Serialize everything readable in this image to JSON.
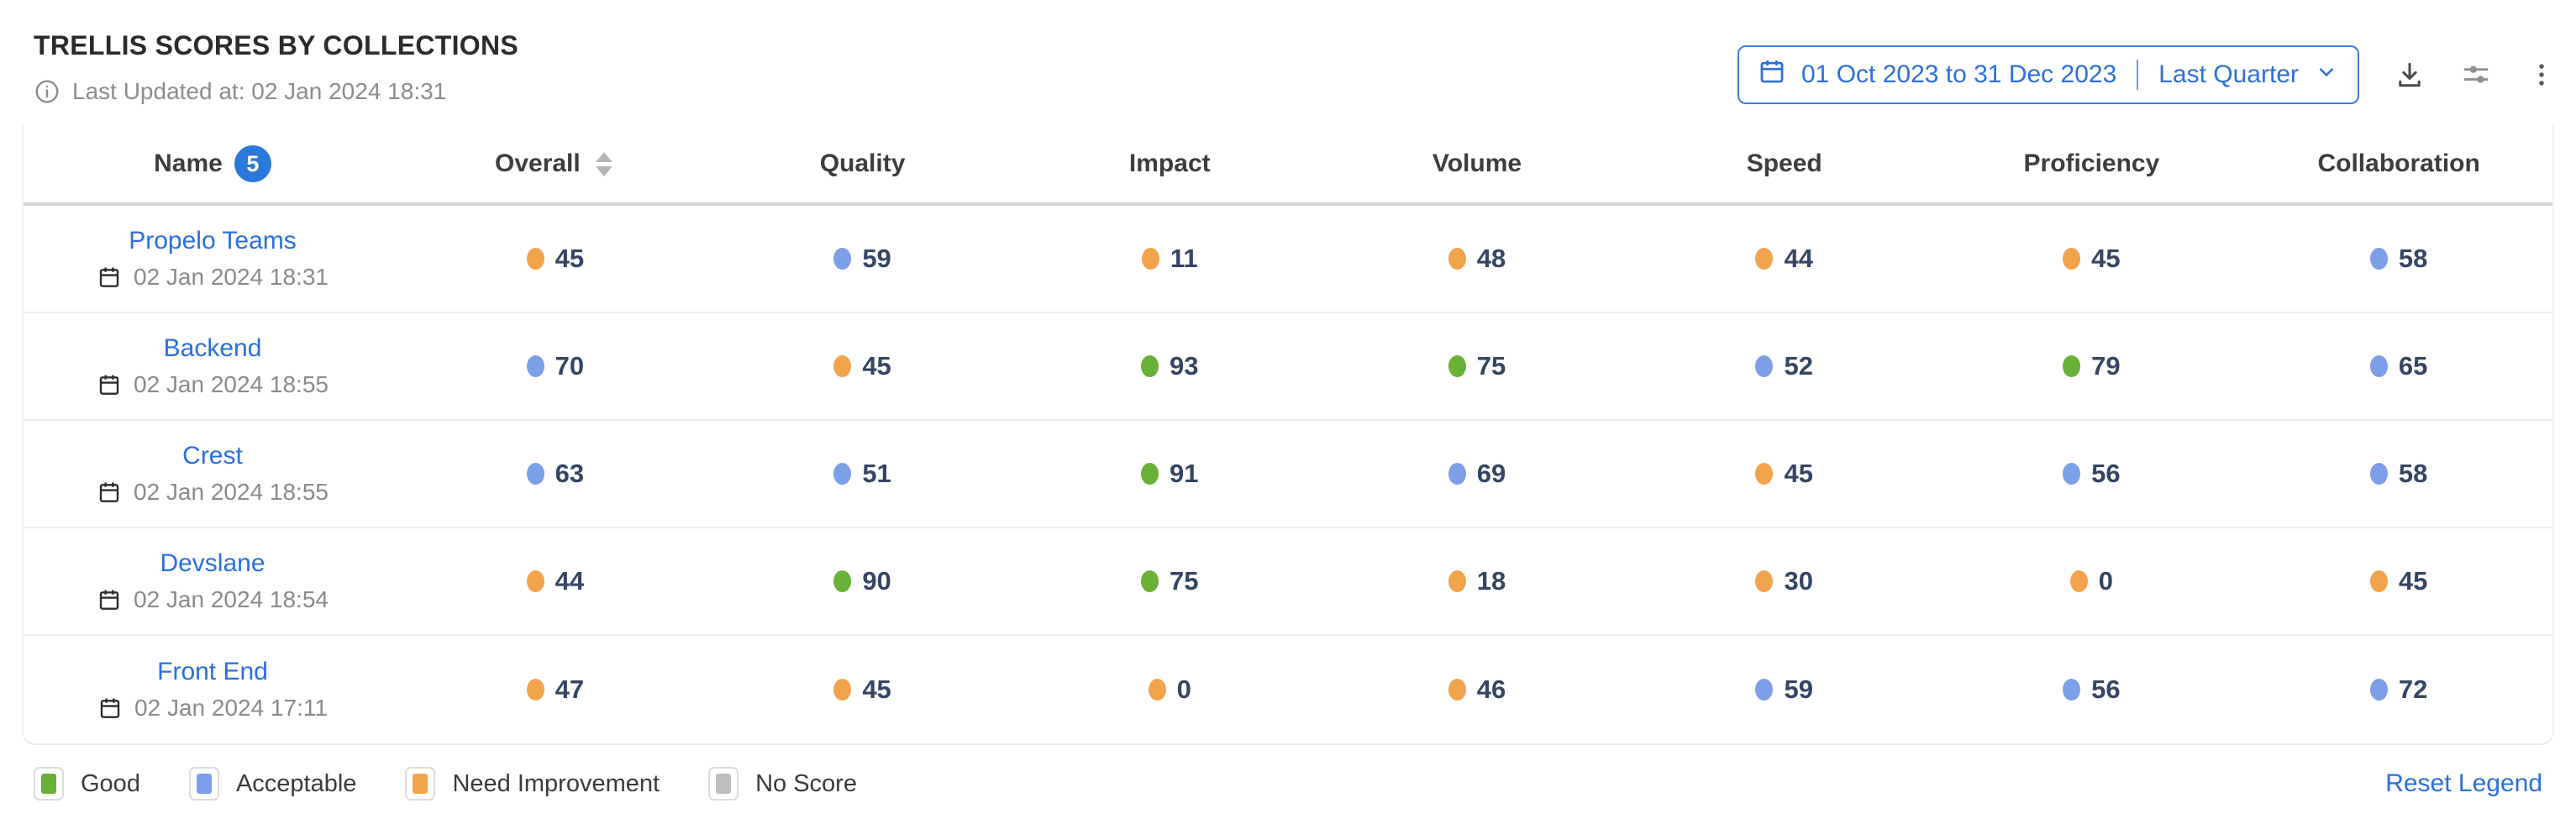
{
  "header": {
    "title": "TRELLIS SCORES BY COLLECTIONS",
    "last_updated": "Last Updated at: 02 Jan 2024 18:31",
    "date_range": {
      "range_text": "01 Oct 2023 to 31 Dec 2023",
      "preset": "Last Quarter"
    },
    "action_icons": [
      "download-icon",
      "settings-sliders-icon",
      "kebab-menu-icon"
    ]
  },
  "table": {
    "columns": [
      {
        "label": "Name",
        "badge": "5"
      },
      {
        "label": "Overall",
        "sortable": true
      },
      {
        "label": "Quality"
      },
      {
        "label": "Impact"
      },
      {
        "label": "Volume"
      },
      {
        "label": "Speed"
      },
      {
        "label": "Proficiency"
      },
      {
        "label": "Collaboration"
      }
    ],
    "rows": [
      {
        "name": "Propelo Teams",
        "updated": "02 Jan 2024 18:31",
        "scores": [
          {
            "value": 45,
            "status": "need_improvement"
          },
          {
            "value": 59,
            "status": "acceptable"
          },
          {
            "value": 11,
            "status": "need_improvement"
          },
          {
            "value": 48,
            "status": "need_improvement"
          },
          {
            "value": 44,
            "status": "need_improvement"
          },
          {
            "value": 45,
            "status": "need_improvement"
          },
          {
            "value": 58,
            "status": "acceptable"
          }
        ]
      },
      {
        "name": "Backend",
        "updated": "02 Jan 2024 18:55",
        "scores": [
          {
            "value": 70,
            "status": "acceptable"
          },
          {
            "value": 45,
            "status": "need_improvement"
          },
          {
            "value": 93,
            "status": "good"
          },
          {
            "value": 75,
            "status": "good"
          },
          {
            "value": 52,
            "status": "acceptable"
          },
          {
            "value": 79,
            "status": "good"
          },
          {
            "value": 65,
            "status": "acceptable"
          }
        ]
      },
      {
        "name": "Crest",
        "updated": "02 Jan 2024 18:55",
        "scores": [
          {
            "value": 63,
            "status": "acceptable"
          },
          {
            "value": 51,
            "status": "acceptable"
          },
          {
            "value": 91,
            "status": "good"
          },
          {
            "value": 69,
            "status": "acceptable"
          },
          {
            "value": 45,
            "status": "need_improvement"
          },
          {
            "value": 56,
            "status": "acceptable"
          },
          {
            "value": 58,
            "status": "acceptable"
          }
        ]
      },
      {
        "name": "Devslane",
        "updated": "02 Jan 2024 18:54",
        "scores": [
          {
            "value": 44,
            "status": "need_improvement"
          },
          {
            "value": 90,
            "status": "good"
          },
          {
            "value": 75,
            "status": "good"
          },
          {
            "value": 18,
            "status": "need_improvement"
          },
          {
            "value": 30,
            "status": "need_improvement"
          },
          {
            "value": 0,
            "status": "need_improvement"
          },
          {
            "value": 45,
            "status": "need_improvement"
          }
        ]
      },
      {
        "name": "Front End",
        "updated": "02 Jan 2024 17:11",
        "scores": [
          {
            "value": 47,
            "status": "need_improvement"
          },
          {
            "value": 45,
            "status": "need_improvement"
          },
          {
            "value": 0,
            "status": "need_improvement"
          },
          {
            "value": 46,
            "status": "need_improvement"
          },
          {
            "value": 59,
            "status": "acceptable"
          },
          {
            "value": 56,
            "status": "acceptable"
          },
          {
            "value": 72,
            "status": "acceptable"
          }
        ]
      }
    ]
  },
  "legend": {
    "items": [
      {
        "label": "Good",
        "status": "good"
      },
      {
        "label": "Acceptable",
        "status": "acceptable"
      },
      {
        "label": "Need Improvement",
        "status": "need_improvement"
      },
      {
        "label": "No Score",
        "status": "no_score"
      }
    ],
    "reset_label": "Reset Legend"
  },
  "colors": {
    "status": {
      "good": "#68b237",
      "acceptable": "#7d9fe8",
      "need_improvement": "#f2a44d",
      "no_score": "#bdbdbd"
    },
    "accent_blue": "#2a6fdb",
    "score_text": "#344563"
  }
}
